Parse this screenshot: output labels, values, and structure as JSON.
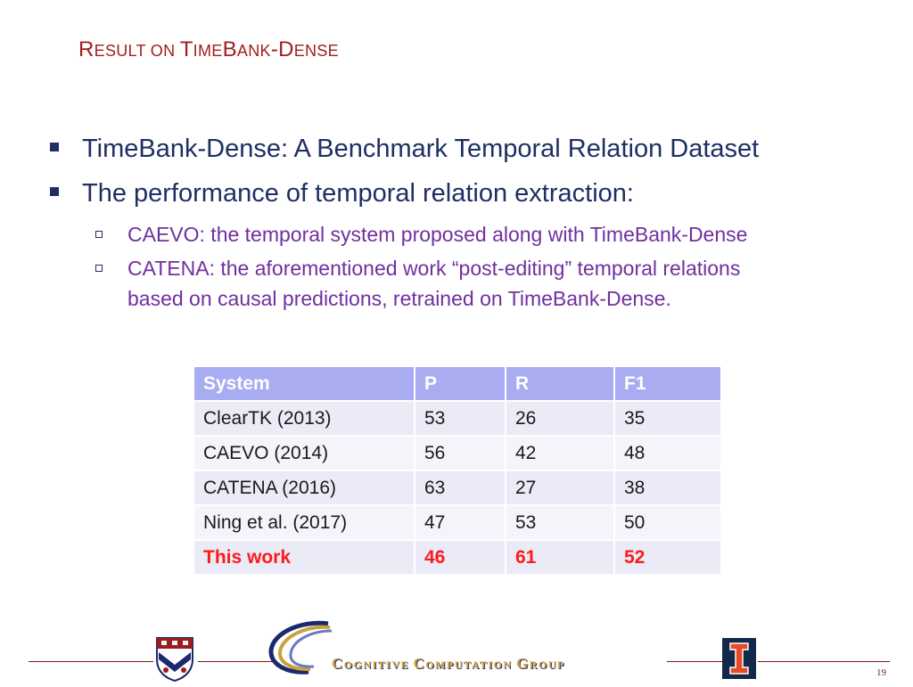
{
  "slide": {
    "title_parts": [
      "R",
      "ESULT ON ",
      "T",
      "IME",
      "B",
      "ANK",
      "-D",
      "ENSE"
    ],
    "bullets": [
      "TimeBank-Dense: A Benchmark Temporal Relation Dataset",
      "The performance of temporal relation extraction:"
    ],
    "sub_bullets": [
      "CAEVO: the temporal system proposed along with TimeBank-Dense",
      "CATENA: the aforementioned work “post-editing” temporal relations",
      "based on causal predictions, retrained on TimeBank-Dense."
    ],
    "table": {
      "headers": [
        "System",
        "P",
        "R",
        "F1"
      ],
      "rows": [
        [
          "ClearTK (2013)",
          "53",
          "26",
          "35"
        ],
        [
          "CAEVO (2014)",
          "56",
          "42",
          "48"
        ],
        [
          "CATENA (2016)",
          "63",
          "27",
          "38"
        ],
        [
          "Ning et al. (2017)",
          "47",
          "53",
          "50"
        ],
        [
          "This work",
          "46",
          "61",
          "52"
        ]
      ]
    },
    "footer": {
      "group_name_parts": [
        "C",
        "OGNITIVE ",
        "C",
        "OMPUTATION ",
        "G",
        "ROUP"
      ],
      "page_number": "19",
      "ui_logo_letter": "I"
    },
    "colors": {
      "title": "#a01e1e",
      "bullet_text": "#1f2f63",
      "sub_bullet_text": "#7030a0",
      "table_header_bg": "#a9acf0",
      "highlight_row": "#ff1a1a"
    }
  }
}
